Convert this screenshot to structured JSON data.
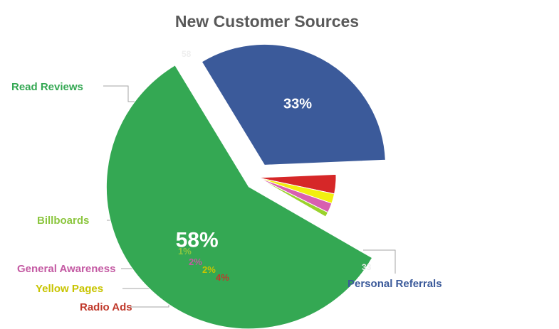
{
  "chart_data": {
    "type": "pie",
    "title": "New Customer Sources",
    "slices": [
      {
        "label": "Read Reviews",
        "value": 58,
        "pct_label": "58%",
        "color": "#34a853",
        "ghost_label": "58"
      },
      {
        "label": "Personal Referrals",
        "value": 33,
        "pct_label": "33%",
        "color": "#3b5a9a",
        "ghost_label": "33"
      },
      {
        "label": "Radio Ads",
        "value": 4,
        "pct_label": "4%",
        "color": "#d62728"
      },
      {
        "label": "Yellow Pages",
        "value": 2,
        "pct_label": "2%",
        "color": "#f2ef0f"
      },
      {
        "label": "General Awareness",
        "value": 2,
        "pct_label": "2%",
        "color": "#d85fb0"
      },
      {
        "label": "Billboards",
        "value": 1,
        "pct_label": "1%",
        "color": "#9ad22c"
      }
    ],
    "label_colors": {
      "Read Reviews": "#34a853",
      "Personal Referrals": "#3b5a9a",
      "Radio Ads": "#c0392b",
      "Yellow Pages": "#c8c400",
      "General Awareness": "#c45aa3",
      "Billboards": "#8cc63f"
    },
    "legend": "none (callout labels)"
  }
}
